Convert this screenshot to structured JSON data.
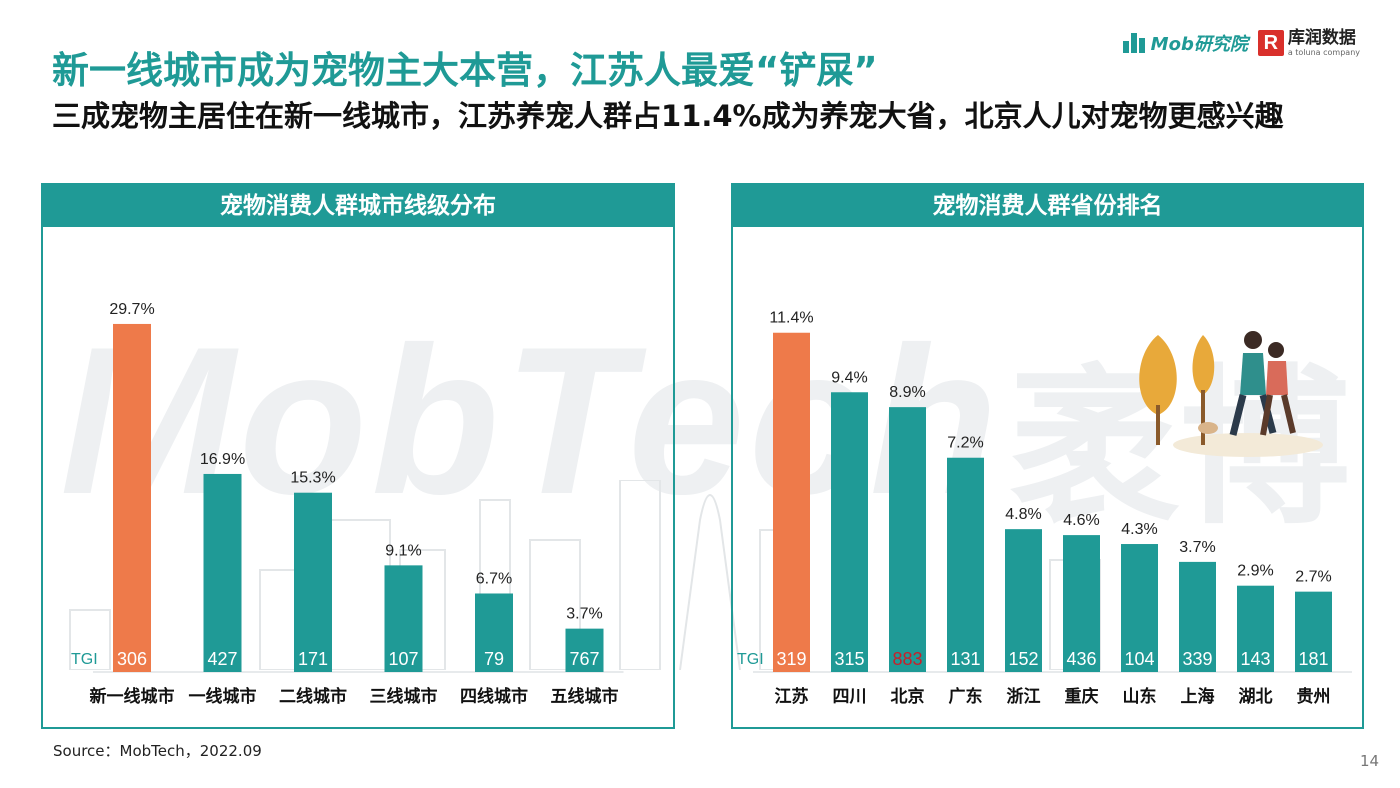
{
  "header": {
    "title": "新一线城市成为宠物主大本营，江苏人最爱“铲屎”",
    "subtitle": "三成宠物主居住在新一线城市，江苏养宠人群占11.4%成为养宠大省，北京人儿对宠物更感兴趣"
  },
  "logos": {
    "mob_label": "Mob研究院",
    "kantar_label": "库润数据",
    "kantar_sub": "a toluna company",
    "kantar_mark": "R"
  },
  "watermark": {
    "text": "MobTech",
    "text2": "袤博"
  },
  "colors": {
    "teal": "#1f9a96",
    "orange": "#ee7a4a",
    "highlight_tgi": "#c8202a"
  },
  "chart_data": [
    {
      "type": "bar",
      "title": "宠物消费人群城市线级分布",
      "categories": [
        "新一线城市",
        "一线城市",
        "二线城市",
        "三线城市",
        "四线城市",
        "五线城市"
      ],
      "values": [
        29.7,
        16.9,
        15.3,
        9.1,
        6.7,
        3.7
      ],
      "value_labels": [
        "29.7%",
        "16.9%",
        "15.3%",
        "9.1%",
        "6.7%",
        "3.7%"
      ],
      "tgi_label": "TGI",
      "tgi": [
        "306",
        "427",
        "171",
        "107",
        "79",
        "767"
      ],
      "highlight_index": 0,
      "ylim": [
        0,
        32
      ]
    },
    {
      "type": "bar",
      "title": "宠物消费人群省份排名",
      "categories": [
        "江苏",
        "四川",
        "北京",
        "广东",
        "浙江",
        "重庆",
        "山东",
        "上海",
        "湖北",
        "贵州"
      ],
      "values": [
        11.4,
        9.4,
        8.9,
        7.2,
        4.8,
        4.6,
        4.3,
        3.7,
        2.9,
        2.7
      ],
      "value_labels": [
        "11.4%",
        "9.4%",
        "8.9%",
        "7.2%",
        "4.8%",
        "4.6%",
        "4.3%",
        "3.7%",
        "2.9%",
        "2.7%"
      ],
      "tgi_label": "TGI",
      "tgi": [
        "319",
        "315",
        "883",
        "131",
        "152",
        "436",
        "104",
        "339",
        "143",
        "181"
      ],
      "highlight_index": 0,
      "tgi_highlight_index": 2,
      "ylim": [
        0,
        12.5
      ]
    }
  ],
  "footer": {
    "source": "Source：MobTech，2022.09",
    "page_number": "14"
  }
}
